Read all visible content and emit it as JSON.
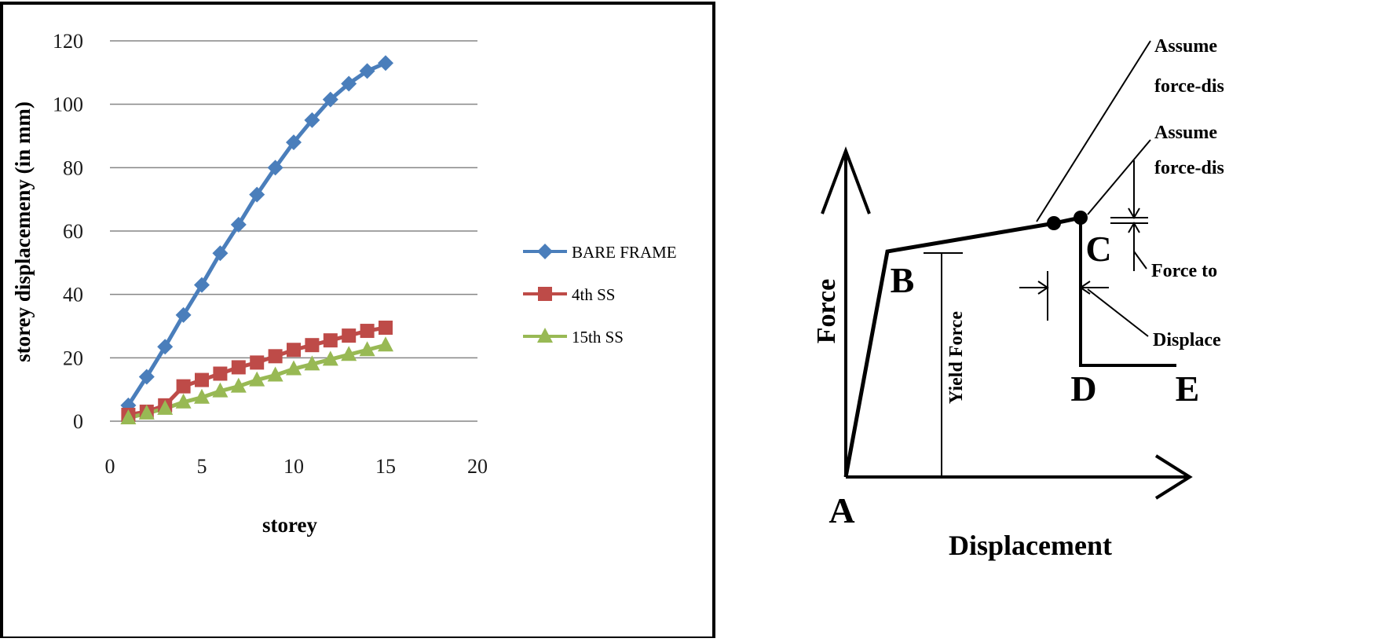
{
  "chart_data": {
    "type": "line",
    "title": "",
    "xlabel": "storey",
    "ylabel": "storey displacemeny (in mm)",
    "xlim": [
      0,
      20
    ],
    "ylim": [
      0,
      120
    ],
    "x_ticks": [
      "0",
      "5",
      "10",
      "15",
      "20"
    ],
    "y_ticks": [
      "0",
      "20",
      "40",
      "60",
      "80",
      "100",
      "120"
    ],
    "grid": "horizontal",
    "legend_position": "right",
    "x": [
      1,
      2,
      3,
      4,
      5,
      6,
      7,
      8,
      9,
      10,
      11,
      12,
      13,
      14,
      15
    ],
    "series": [
      {
        "name": "BARE FRAME",
        "color": "#4a7ebb",
        "marker": "diamond",
        "values": [
          5,
          14,
          23.5,
          33.5,
          43,
          53,
          62,
          71.5,
          80,
          88,
          95,
          101.5,
          106.5,
          110.5,
          113
        ]
      },
      {
        "name": "4th SS",
        "color": "#be4b48",
        "marker": "square",
        "values": [
          2,
          3,
          5,
          11,
          13,
          15,
          17,
          18.5,
          20.5,
          22.5,
          24,
          25.5,
          27,
          28.5,
          29.5
        ]
      },
      {
        "name": "15th SS",
        "color": "#98b954",
        "marker": "triangle",
        "values": [
          1,
          2.5,
          4,
          6,
          7.5,
          9.5,
          11,
          13,
          14.5,
          16.5,
          18,
          19.5,
          21,
          22.5,
          24
        ]
      }
    ]
  },
  "diagram": {
    "y_axis_label": "Force",
    "x_axis_label": "Displacement",
    "yield_label": "Yield Force",
    "points": {
      "a": "A",
      "b": "B",
      "c": "C",
      "d": "D",
      "e": "E"
    },
    "annotations": [
      {
        "line1": "Assume",
        "line2": "force-dis"
      },
      {
        "line1": "Assume",
        "line2": "force-dis"
      },
      {
        "line1": "Force to",
        "line2": ""
      },
      {
        "line1": "Displace",
        "line2": ""
      }
    ]
  }
}
